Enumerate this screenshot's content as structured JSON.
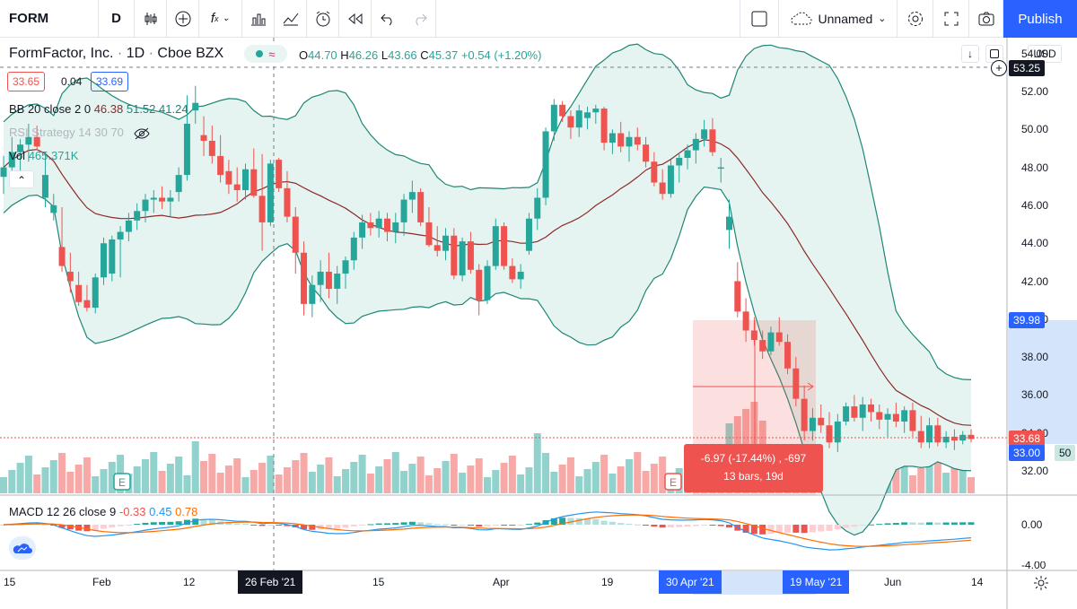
{
  "toolbar": {
    "symbol": "FORM",
    "interval": "D",
    "layout_name": "Unnamed",
    "publish_label": "Publish",
    "fx_label": "f",
    "icons": [
      "bar-style-icon",
      "add-indicator-icon",
      "function-icon",
      "chart-type-icon",
      "compare-icon",
      "alert-icon",
      "replay-icon",
      "undo-icon",
      "redo-icon",
      "checkbox-icon",
      "cloud-icon",
      "settings-icon",
      "fullscreen-icon",
      "camera-icon"
    ]
  },
  "header": {
    "name": "FormFactor, Inc.",
    "sep1": "·",
    "interval": "1D",
    "sep2": "·",
    "exchange": "Cboe BZX",
    "ohlc": {
      "o_label": "O",
      "o": "44.70",
      "h_label": "H",
      "h": "46.26",
      "l_label": "L",
      "l": "43.66",
      "c_label": "C",
      "c": "45.37",
      "change": "+0.54 (+1.20%)"
    },
    "bid": "33.65",
    "spread": "0.04",
    "ask": "33.69",
    "currency": "USD"
  },
  "indicators": {
    "bb": {
      "label": "BB 20 close 2 0",
      "v1": "46.38",
      "v2": "51.52",
      "v3": "41.24"
    },
    "rsi": {
      "label": "RSI Strategy 14 30 70"
    },
    "vol": {
      "label": "Vol",
      "value": "465.371K"
    },
    "macd": {
      "label": "MACD 12 26 close 9",
      "v1": "-0.33",
      "v2": "0.45",
      "v3": "0.78"
    }
  },
  "price_axis": [
    "54.00",
    "52.00",
    "50.00",
    "48.00",
    "46.00",
    "44.00",
    "42.00",
    "40.00",
    "38.00",
    "36.00",
    "34.00",
    "32.00"
  ],
  "price_axis_tags": {
    "crosshair": "53.25",
    "target": "39.98",
    "last": "33.68",
    "low": "33.00",
    "vol_tag": "50"
  },
  "macd_axis": [
    "0.00",
    "-4.00"
  ],
  "time_axis": [
    "15",
    "Feb",
    "12",
    "15",
    "Apr",
    "19",
    "Jun",
    "14"
  ],
  "time_highlights": {
    "crosshair": "26 Feb '21",
    "start": "30 Apr '21",
    "end": "19 May '21"
  },
  "measure": {
    "line1": "-6.97 (-17.44%) , -697",
    "line2": "13 bars, 19d"
  },
  "earnings_marker": "E",
  "colors": {
    "up": "#26a69a",
    "down": "#ef5350",
    "bb_fill": "#e6f4f1",
    "bb_line": "#1e8577",
    "basis": "#8b2a2a",
    "macd": "#2196f3",
    "signal": "#ff6d00",
    "accent": "#2962ff"
  },
  "chart_data": {
    "type": "candlestick",
    "xlabel": "",
    "ylabel": "",
    "ylim": [
      31,
      55
    ],
    "last_close": 33.68,
    "measured_range": {
      "from": 39.98,
      "to": 33.01,
      "change": -6.97,
      "percent": -17.44,
      "bars": 13,
      "days": 19
    },
    "ohlc": [
      [
        47.5,
        48.6,
        46.6,
        48.0
      ],
      [
        48.0,
        49.6,
        47.2,
        48.8
      ],
      [
        48.8,
        49.5,
        47.8,
        49.2
      ],
      [
        49.2,
        50.3,
        48.3,
        49.6
      ],
      [
        49.6,
        50.2,
        48.9,
        49.1
      ],
      [
        46.4,
        48.8,
        45.9,
        47.6
      ],
      [
        45.6,
        46.6,
        45.2,
        46.0
      ],
      [
        43.8,
        45.9,
        42.5,
        42.8
      ],
      [
        42.5,
        43.5,
        41.4,
        42.0
      ],
      [
        41.8,
        42.5,
        40.7,
        40.9
      ],
      [
        41.0,
        41.8,
        40.4,
        40.6
      ],
      [
        40.6,
        42.4,
        40.3,
        42.2
      ],
      [
        42.2,
        44.3,
        41.8,
        44.0
      ],
      [
        42.4,
        44.4,
        42.0,
        44.2
      ],
      [
        44.2,
        44.9,
        42.2,
        44.6
      ],
      [
        44.6,
        45.6,
        44.1,
        45.2
      ],
      [
        45.2,
        46.1,
        44.7,
        45.7
      ],
      [
        45.7,
        46.6,
        45.1,
        46.3
      ],
      [
        46.3,
        46.8,
        45.6,
        46.4
      ],
      [
        46.4,
        47.0,
        45.8,
        46.2
      ],
      [
        46.2,
        46.8,
        45.4,
        46.4
      ],
      [
        46.7,
        48.0,
        46.2,
        47.6
      ],
      [
        47.6,
        51.8,
        47.3,
        50.3
      ],
      [
        51.0,
        52.3,
        50.3,
        51.4
      ],
      [
        49.7,
        50.7,
        48.6,
        49.4
      ],
      [
        49.4,
        50.2,
        48.2,
        48.6
      ],
      [
        48.6,
        49.7,
        47.2,
        47.6
      ],
      [
        47.8,
        48.4,
        46.6,
        47.1
      ],
      [
        47.1,
        48.0,
        46.2,
        46.8
      ],
      [
        46.8,
        48.2,
        46.3,
        47.9
      ],
      [
        47.9,
        49.0,
        46.4,
        46.5
      ],
      [
        46.5,
        48.7,
        43.6,
        45.1
      ],
      [
        45.1,
        48.4,
        44.9,
        48.2
      ],
      [
        48.4,
        48.5,
        46.7,
        46.9
      ],
      [
        46.9,
        47.8,
        45.1,
        45.4
      ],
      [
        45.4,
        45.9,
        42.4,
        43.5
      ],
      [
        43.5,
        44.1,
        40.2,
        40.8
      ],
      [
        40.8,
        42.3,
        40.1,
        41.8
      ],
      [
        41.8,
        43.1,
        40.9,
        42.5
      ],
      [
        42.5,
        43.5,
        41.1,
        41.6
      ],
      [
        41.6,
        42.8,
        40.8,
        42.4
      ],
      [
        42.4,
        43.3,
        41.6,
        43.1
      ],
      [
        43.1,
        44.6,
        42.6,
        44.3
      ],
      [
        44.3,
        45.5,
        43.7,
        45.1
      ],
      [
        45.1,
        45.6,
        44.4,
        44.8
      ],
      [
        44.8,
        45.7,
        44.3,
        45.3
      ],
      [
        45.3,
        45.6,
        44.1,
        44.6
      ],
      [
        44.6,
        45.6,
        44.0,
        45.1
      ],
      [
        45.1,
        46.6,
        44.4,
        46.3
      ],
      [
        46.3,
        47.3,
        45.6,
        46.7
      ],
      [
        46.7,
        46.9,
        44.9,
        45.1
      ],
      [
        45.1,
        45.9,
        43.8,
        43.9
      ],
      [
        43.9,
        44.9,
        43.3,
        43.6
      ],
      [
        43.6,
        44.8,
        43.1,
        44.4
      ],
      [
        44.4,
        44.8,
        42.1,
        42.3
      ],
      [
        42.3,
        44.3,
        42.0,
        44.1
      ],
      [
        44.1,
        44.6,
        42.4,
        42.6
      ],
      [
        42.6,
        42.9,
        40.2,
        41.0
      ],
      [
        41.0,
        43.1,
        40.8,
        42.8
      ],
      [
        42.8,
        45.3,
        42.6,
        44.9
      ],
      [
        44.9,
        45.1,
        42.6,
        42.8
      ],
      [
        42.8,
        43.2,
        41.9,
        42.1
      ],
      [
        42.1,
        42.9,
        41.6,
        42.5
      ],
      [
        43.6,
        45.6,
        43.4,
        45.3
      ],
      [
        45.3,
        46.9,
        44.7,
        46.4
      ],
      [
        46.4,
        50.1,
        46.0,
        49.9
      ],
      [
        49.9,
        51.6,
        49.4,
        51.3
      ],
      [
        51.3,
        51.5,
        50.4,
        50.7
      ],
      [
        50.7,
        51.0,
        49.5,
        50.1
      ],
      [
        50.1,
        51.3,
        49.6,
        51.0
      ],
      [
        50.6,
        51.2,
        50.0,
        50.9
      ],
      [
        50.9,
        51.3,
        50.3,
        51.1
      ],
      [
        51.1,
        51.2,
        48.9,
        49.3
      ],
      [
        49.3,
        50.0,
        48.7,
        49.8
      ],
      [
        49.8,
        50.4,
        48.8,
        49.1
      ],
      [
        49.1,
        49.9,
        48.3,
        49.6
      ],
      [
        49.6,
        50.1,
        48.9,
        49.2
      ],
      [
        49.2,
        49.6,
        48.0,
        48.3
      ],
      [
        48.3,
        48.8,
        47.0,
        47.2
      ],
      [
        47.2,
        47.9,
        46.3,
        46.6
      ],
      [
        46.6,
        48.4,
        46.4,
        48.1
      ],
      [
        48.1,
        48.7,
        47.2,
        48.5
      ],
      [
        48.5,
        49.2,
        47.9,
        48.9
      ],
      [
        48.9,
        49.8,
        48.2,
        49.5
      ],
      [
        49.5,
        50.5,
        49.1,
        50.0
      ],
      [
        50.0,
        50.6,
        48.6,
        48.8
      ],
      [
        48.0,
        48.5,
        47.2,
        48.0
      ],
      [
        44.7,
        46.3,
        43.7,
        45.4
      ],
      [
        42.0,
        43.0,
        40.1,
        40.4
      ],
      [
        40.4,
        41.1,
        38.8,
        39.4
      ],
      [
        39.4,
        40.1,
        38.6,
        38.9
      ],
      [
        38.9,
        39.4,
        37.9,
        38.3
      ],
      [
        38.3,
        39.6,
        38.1,
        39.3
      ],
      [
        39.3,
        40.1,
        38.6,
        38.8
      ],
      [
        38.8,
        39.2,
        37.1,
        37.4
      ],
      [
        37.4,
        38.0,
        35.4,
        35.8
      ],
      [
        35.8,
        36.5,
        33.6,
        34.1
      ],
      [
        34.1,
        35.3,
        33.6,
        34.8
      ],
      [
        34.8,
        35.5,
        34.0,
        34.4
      ],
      [
        34.4,
        35.1,
        33.2,
        33.5
      ],
      [
        33.5,
        35.0,
        33.0,
        34.6
      ],
      [
        34.6,
        35.6,
        34.4,
        35.4
      ],
      [
        35.4,
        36.0,
        34.6,
        34.8
      ],
      [
        34.8,
        35.9,
        34.1,
        35.5
      ],
      [
        35.5,
        35.8,
        34.6,
        35.1
      ],
      [
        35.1,
        35.5,
        34.2,
        34.7
      ],
      [
        34.7,
        35.3,
        33.8,
        35.0
      ],
      [
        35.0,
        35.6,
        34.3,
        34.6
      ],
      [
        34.6,
        35.4,
        34.0,
        35.2
      ],
      [
        35.2,
        35.6,
        33.8,
        34.1
      ],
      [
        34.1,
        34.9,
        33.2,
        33.5
      ],
      [
        33.5,
        34.8,
        33.2,
        34.4
      ],
      [
        34.4,
        34.8,
        33.3,
        33.5
      ],
      [
        33.5,
        34.1,
        33.2,
        33.8
      ],
      [
        33.8,
        34.2,
        33.1,
        33.6
      ],
      [
        33.6,
        34.1,
        33.4,
        33.9
      ],
      [
        33.9,
        34.2,
        33.5,
        33.68
      ]
    ]
  }
}
